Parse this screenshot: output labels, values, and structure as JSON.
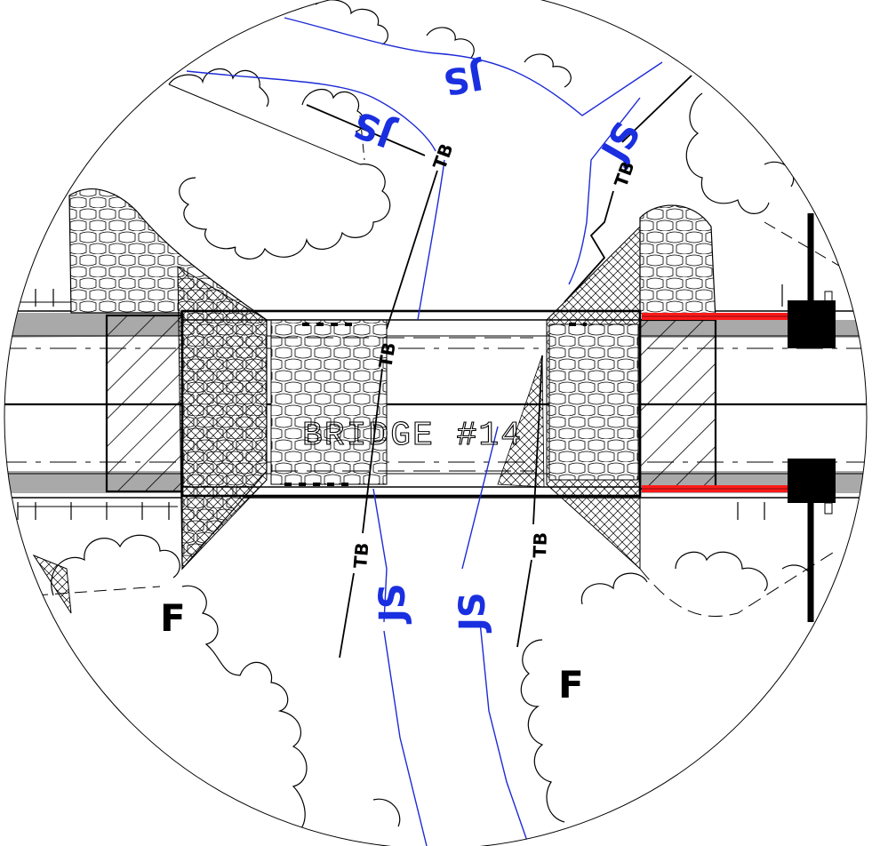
{
  "colors": {
    "stream_line": "#1d2bd6",
    "stream_label": "#1a2fe0",
    "rail": "#ff1a1a",
    "roadway_shoulder": "#a9a9a9",
    "linework": "#000000"
  },
  "bridge": {
    "label": "BRIDGE #14"
  },
  "stream_labels": [
    "JS",
    "JS",
    "JS",
    "JS",
    "JS"
  ],
  "tree_bank_labels": [
    "TB",
    "TB",
    "TB",
    "TB",
    "TB"
  ],
  "fence_labels": [
    "F",
    "F"
  ]
}
